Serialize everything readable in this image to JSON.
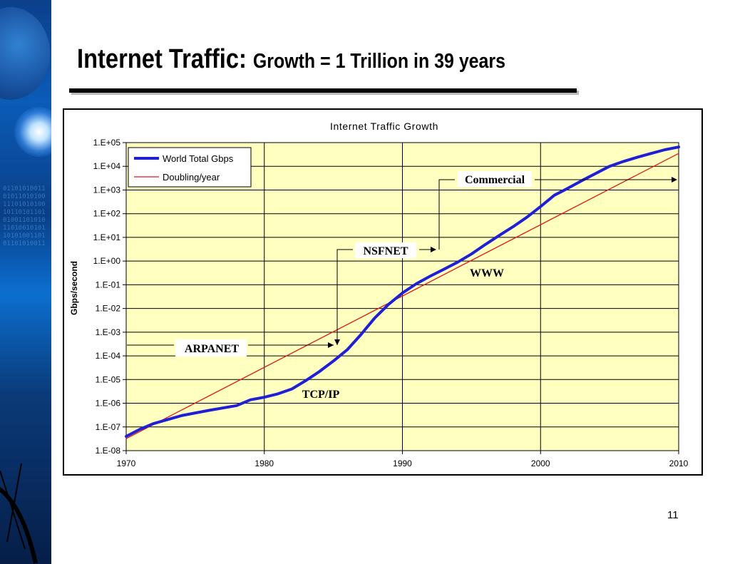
{
  "slide": {
    "title_main": "Internet Traffic:",
    "title_sub": "Growth = 1 Trillion in 39 years",
    "page_number": "11"
  },
  "colors": {
    "plot_background": "#ffffc0",
    "world_total_line": "#1f1fd6",
    "doubling_line": "#e01818",
    "grid": "#000000"
  },
  "chart_data": {
    "type": "line",
    "title": "Internet Traffic Growth",
    "xlabel": "",
    "ylabel": "Gbps/second",
    "xlim": [
      1970,
      2010
    ],
    "ylim_log10": [
      -8,
      5
    ],
    "yscale": "log",
    "grid": true,
    "legend_position": "top-left",
    "x_ticks": [
      "1970",
      "1980",
      "1990",
      "2000",
      "2010"
    ],
    "y_ticks": [
      "1.E-08",
      "1.E-07",
      "1.E-06",
      "1.E-05",
      "1.E-04",
      "1.E-03",
      "1.E-02",
      "1.E-01",
      "1.E+00",
      "1.E+01",
      "1.E+02",
      "1.E+03",
      "1.E+04",
      "1.E+05"
    ],
    "series": [
      {
        "name": "World Total Gbps",
        "x": [
          1970,
          1971,
          1972,
          1974,
          1976,
          1978,
          1979,
          1980,
          1981,
          1982,
          1983,
          1984,
          1985,
          1986,
          1987,
          1988,
          1989,
          1990,
          1991,
          1992,
          1993,
          1994,
          1995,
          1996,
          1997,
          1998,
          1999,
          2000,
          2001,
          2002,
          2003,
          2004,
          2005,
          2006,
          2007,
          2008,
          2009,
          2010
        ],
        "values": [
          4e-08,
          8e-08,
          1.4e-07,
          3e-07,
          5e-07,
          8e-07,
          1.4e-06,
          1.8e-06,
          2.5e-06,
          4e-06,
          9e-06,
          2.2e-05,
          6e-05,
          0.00018,
          0.0008,
          0.004,
          0.015,
          0.045,
          0.11,
          0.23,
          0.45,
          0.9,
          2,
          5,
          12,
          28,
          70,
          200,
          600,
          1200,
          2500,
          5000,
          10000,
          16000,
          24000,
          35000,
          50000,
          65000
        ]
      },
      {
        "name": "Doubling/year",
        "x": [
          1970,
          2010
        ],
        "values": [
          3.2e-08,
          35000.0
        ]
      }
    ],
    "annotations": [
      {
        "text": "ARPANET",
        "x": 1975.9,
        "y": 0.00012
      },
      {
        "text": "TCP/IP",
        "x": 1983.9,
        "y": 4e-06
      },
      {
        "text": "NSFNET",
        "x": 1988.9,
        "y": 0.7
      },
      {
        "text": "WWW",
        "x": 1994.9,
        "y": 0.3
      },
      {
        "text": "Commercial",
        "x": 1996.8,
        "y": 900
      }
    ]
  }
}
